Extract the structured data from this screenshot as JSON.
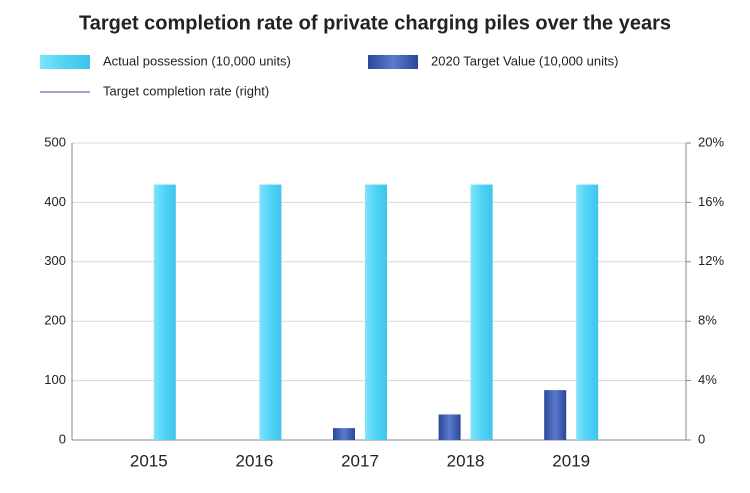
{
  "chart_data": {
    "type": "bar",
    "title": "Target completion rate of private charging piles over the years",
    "categories": [
      "2015",
      "2016",
      "2017",
      "2018",
      "2019"
    ],
    "series": [
      {
        "name": "Actual possession (10,000 units)",
        "color": "#4fd3f5",
        "values": [
          430,
          430,
          430,
          430,
          430
        ]
      },
      {
        "name": "2020 Target Value (10,000 units)",
        "color": "#3f5db5",
        "values": [
          0,
          0,
          20,
          43,
          84
        ]
      },
      {
        "name": "Target completion rate (right)",
        "color": "#9ea8d8",
        "type": "line",
        "axis": "y2",
        "values": [
          null,
          null,
          null,
          null,
          null
        ]
      }
    ],
    "ylim": [
      0,
      500
    ],
    "yticks": [
      0,
      100,
      200,
      300,
      400,
      500
    ],
    "y2lim": [
      0,
      20
    ],
    "y2ticks": [
      {
        "value": 0,
        "label": "0"
      },
      {
        "value": 4,
        "label": "4%"
      },
      {
        "value": 8,
        "label": "8%"
      },
      {
        "value": 12,
        "label": "12%"
      },
      {
        "value": 16,
        "label": "16%"
      },
      {
        "value": 20,
        "label": "20%"
      }
    ],
    "grid": true
  }
}
